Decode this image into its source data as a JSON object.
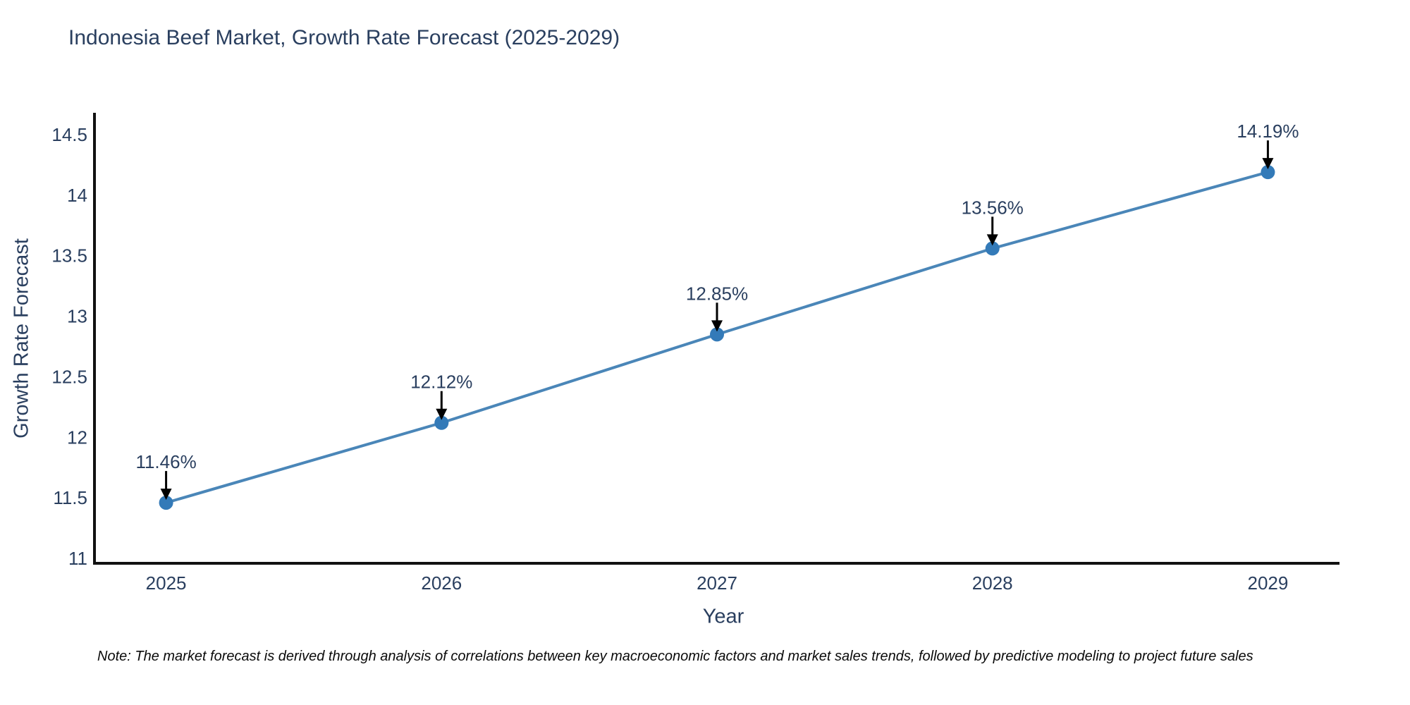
{
  "chart_data": {
    "type": "line",
    "title": "Indonesia Beef Market, Growth Rate Forecast (2025-2029)",
    "xlabel": "Year",
    "ylabel": "Growth Rate Forecast",
    "x": [
      2025,
      2026,
      2027,
      2028,
      2029
    ],
    "values": [
      11.46,
      12.12,
      12.85,
      13.56,
      14.19
    ],
    "point_labels": [
      "11.46%",
      "12.12%",
      "12.85%",
      "13.56%",
      "14.19%"
    ],
    "x_ticks": [
      "2025",
      "2026",
      "2027",
      "2028",
      "2029"
    ],
    "x_tick_values": [
      2025,
      2026,
      2027,
      2028,
      2029
    ],
    "y_ticks": [
      "11",
      "11.5",
      "12",
      "12.5",
      "13",
      "13.5",
      "14",
      "14.5"
    ],
    "y_tick_values": [
      11,
      11.5,
      12,
      12.5,
      13,
      13.5,
      14,
      14.5
    ],
    "xlim": [
      2024.74,
      2029.26
    ],
    "ylim": [
      10.96,
      14.68
    ],
    "grid": false,
    "legend": false,
    "annotation_style": "black-down-arrows-above-points",
    "colors": {
      "line": "#4a86b8",
      "marker": "#337ab8",
      "axis": "#111111",
      "text": "#2a3f5f",
      "arrow": "#000000"
    }
  },
  "note": {
    "text": "Note: The market forecast is derived through analysis of correlations between key macroeconomic factors and market sales trends, followed by predictive modeling to project future sales"
  }
}
